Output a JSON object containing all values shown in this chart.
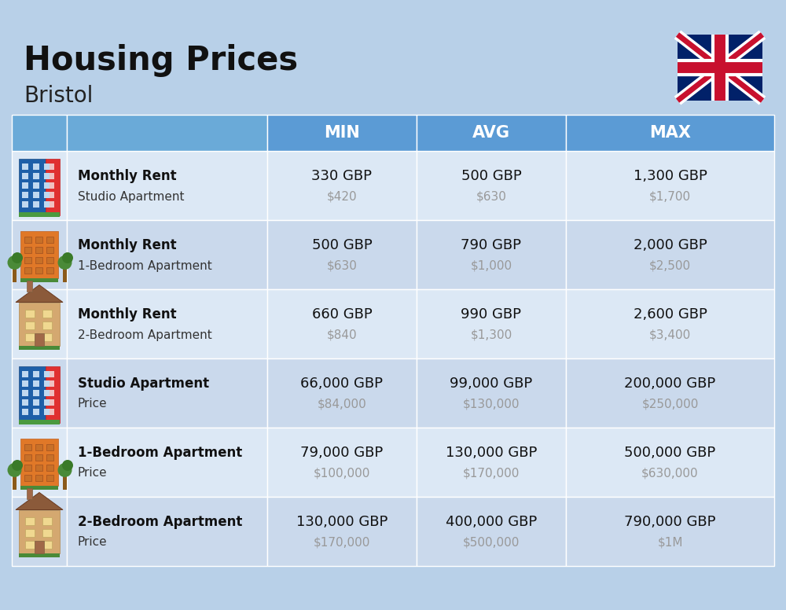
{
  "title": "Housing Prices",
  "subtitle": "Bristol",
  "background_color": "#b8d0e8",
  "header_bg_color": "#5b9bd5",
  "row_bg_color_even": "#dce8f5",
  "row_bg_color_odd": "#cad9ec",
  "col_headers": [
    "MIN",
    "AVG",
    "MAX"
  ],
  "rows": [
    {
      "bold_label": "Monthly Rent",
      "sub_label": "Studio Apartment",
      "icon_type": "studio_blue",
      "min_gbp": "330 GBP",
      "min_usd": "$420",
      "avg_gbp": "500 GBP",
      "avg_usd": "$630",
      "max_gbp": "1,300 GBP",
      "max_usd": "$1,700"
    },
    {
      "bold_label": "Monthly Rent",
      "sub_label": "1-Bedroom Apartment",
      "icon_type": "onebr_orange",
      "min_gbp": "500 GBP",
      "min_usd": "$630",
      "avg_gbp": "790 GBP",
      "avg_usd": "$1,000",
      "max_gbp": "2,000 GBP",
      "max_usd": "$2,500"
    },
    {
      "bold_label": "Monthly Rent",
      "sub_label": "2-Bedroom Apartment",
      "icon_type": "twobr_beige",
      "min_gbp": "660 GBP",
      "min_usd": "$840",
      "avg_gbp": "990 GBP",
      "avg_usd": "$1,300",
      "max_gbp": "2,600 GBP",
      "max_usd": "$3,400"
    },
    {
      "bold_label": "Studio Apartment",
      "sub_label": "Price",
      "icon_type": "studio_blue",
      "min_gbp": "66,000 GBP",
      "min_usd": "$84,000",
      "avg_gbp": "99,000 GBP",
      "avg_usd": "$130,000",
      "max_gbp": "200,000 GBP",
      "max_usd": "$250,000"
    },
    {
      "bold_label": "1-Bedroom Apartment",
      "sub_label": "Price",
      "icon_type": "onebr_orange",
      "min_gbp": "79,000 GBP",
      "min_usd": "$100,000",
      "avg_gbp": "130,000 GBP",
      "avg_usd": "$170,000",
      "max_gbp": "500,000 GBP",
      "max_usd": "$630,000"
    },
    {
      "bold_label": "2-Bedroom Apartment",
      "sub_label": "Price",
      "icon_type": "twobr_beige",
      "min_gbp": "130,000 GBP",
      "min_usd": "$170,000",
      "avg_gbp": "400,000 GBP",
      "avg_usd": "$500,000",
      "max_gbp": "790,000 GBP",
      "max_usd": "$1M"
    }
  ]
}
